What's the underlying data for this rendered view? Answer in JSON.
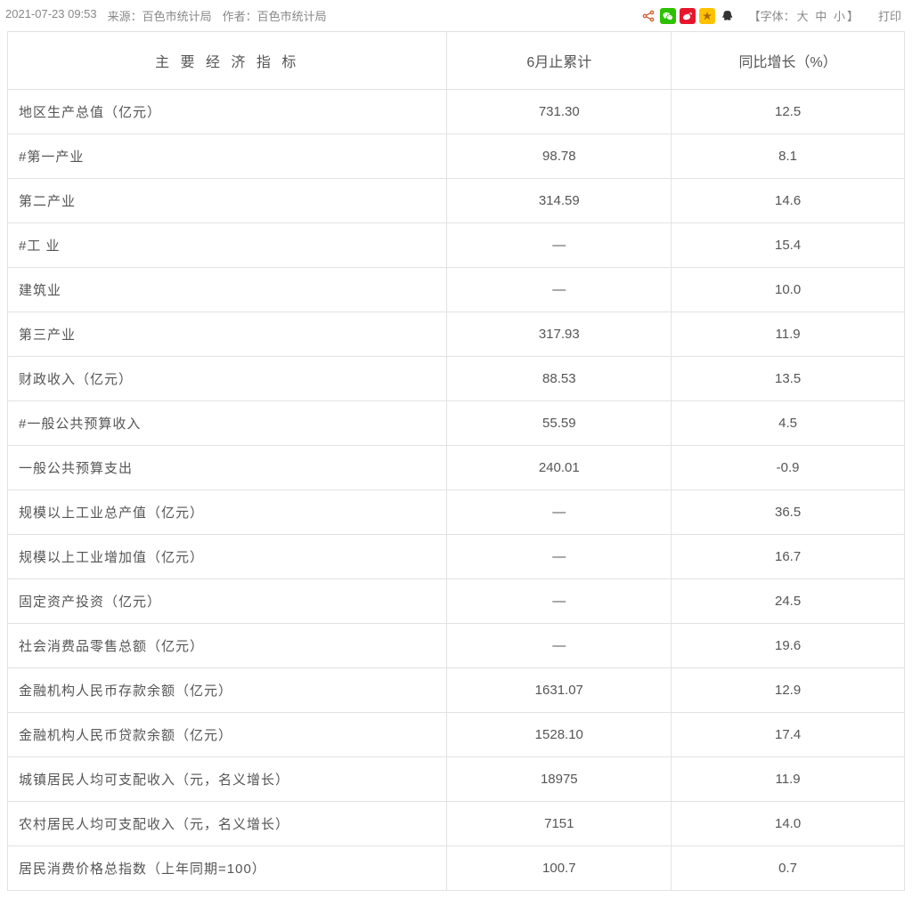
{
  "meta": {
    "datetime": "2021-07-23 09:53",
    "source_label": "来源：百色市统计局",
    "author_label": "作者：百色市统计局",
    "font_label_prefix": "【字体：",
    "font_large": "大",
    "font_medium": "中",
    "font_small": "小",
    "font_label_suffix": "】",
    "print": "打印"
  },
  "icons": {
    "share": "share-icon",
    "wechat": "wechat-icon",
    "weibo": "weibo-icon",
    "qzone": "qzone-icon",
    "qq": "qq-icon"
  },
  "table": {
    "columns": [
      "主 要 经 济 指 标",
      "6月止累计",
      "同比增长（%）"
    ],
    "colors": {
      "border": "#e2e2e2",
      "text": "#555555",
      "meta_text": "#888888",
      "background": "#ffffff"
    },
    "rows": [
      {
        "indicator": "地区生产总值（亿元）",
        "cum": "731.30",
        "yoy": "12.5"
      },
      {
        "indicator": "#第一产业",
        "cum": "98.78",
        "yoy": "8.1"
      },
      {
        "indicator": "第二产业",
        "cum": "314.59",
        "yoy": "14.6"
      },
      {
        "indicator": "#工 业",
        "cum": "—",
        "yoy": "15.4"
      },
      {
        "indicator": "建筑业",
        "cum": "—",
        "yoy": "10.0"
      },
      {
        "indicator": "第三产业",
        "cum": "317.93",
        "yoy": "11.9"
      },
      {
        "indicator": "财政收入（亿元）",
        "cum": "88.53",
        "yoy": "13.5"
      },
      {
        "indicator": "#一般公共预算收入",
        "cum": "55.59",
        "yoy": "4.5"
      },
      {
        "indicator": "一般公共预算支出",
        "cum": "240.01",
        "yoy": "-0.9"
      },
      {
        "indicator": "规模以上工业总产值（亿元）",
        "cum": "—",
        "yoy": "36.5"
      },
      {
        "indicator": "规模以上工业增加值（亿元）",
        "cum": "—",
        "yoy": "16.7"
      },
      {
        "indicator": "固定资产投资（亿元）",
        "cum": "—",
        "yoy": "24.5"
      },
      {
        "indicator": "社会消费品零售总额（亿元）",
        "cum": "—",
        "yoy": "19.6"
      },
      {
        "indicator": "金融机构人民币存款余额（亿元）",
        "cum": "1631.07",
        "yoy": "12.9"
      },
      {
        "indicator": "金融机构人民币贷款余额（亿元）",
        "cum": "1528.10",
        "yoy": "17.4"
      },
      {
        "indicator": "城镇居民人均可支配收入（元，名义增长）",
        "cum": "18975",
        "yoy": "11.9"
      },
      {
        "indicator": "农村居民人均可支配收入（元，名义增长）",
        "cum": "7151",
        "yoy": "14.0"
      },
      {
        "indicator": "居民消费价格总指数（上年同期=100）",
        "cum": "100.7",
        "yoy": "0.7"
      }
    ]
  }
}
